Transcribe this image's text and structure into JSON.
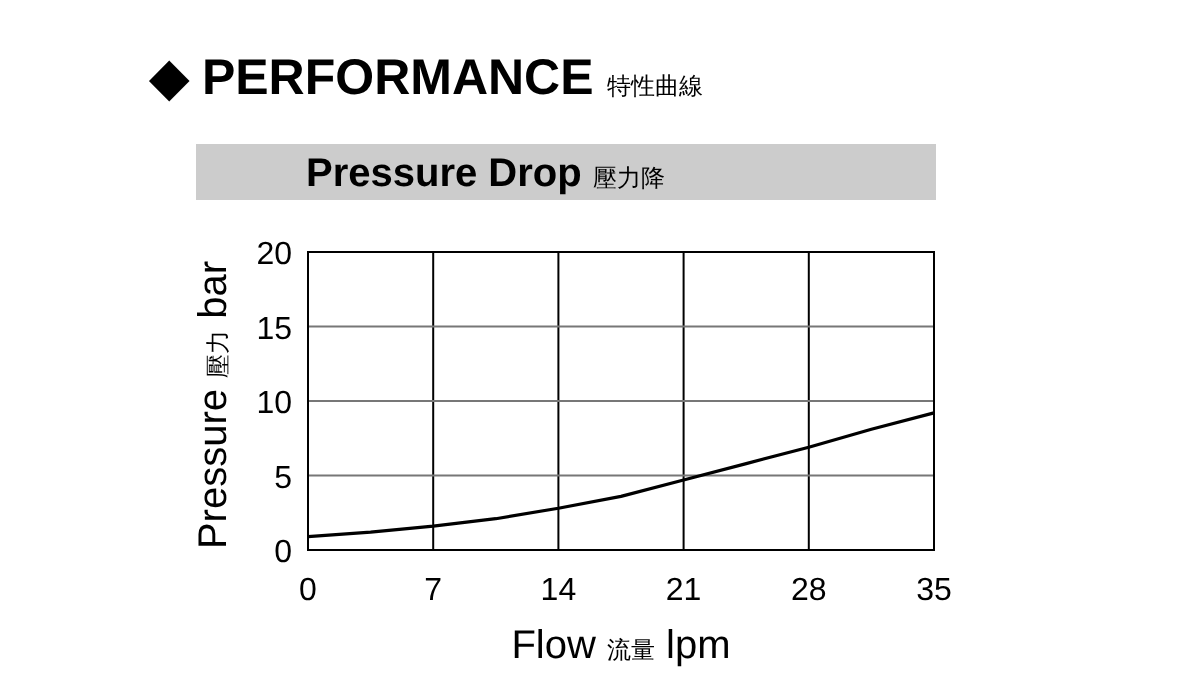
{
  "chart_data": {
    "type": "line",
    "title": "◆ PERFORMANCE 特性曲線",
    "subtitle": "Pressure Drop 壓力降",
    "xlabel": "Flow 流量 lpm",
    "ylabel": "Pressure 壓力 bar",
    "x": [
      0,
      3.5,
      7,
      10.5,
      14,
      17.5,
      21,
      24.5,
      28,
      31.5,
      35
    ],
    "series": [
      {
        "color": "#000000",
        "values": [
          0.9,
          1.2,
          1.6,
          2.1,
          2.8,
          3.6,
          4.7,
          5.8,
          6.9,
          8.1,
          9.2
        ]
      }
    ],
    "xlim": [
      0,
      35
    ],
    "xticks": [
      0,
      7,
      14,
      21,
      28,
      35
    ],
    "ylim": [
      0,
      20
    ],
    "yticks": [
      0,
      5,
      10,
      15,
      20
    ],
    "grid": true,
    "marker": "none",
    "line_style": "solid"
  }
}
